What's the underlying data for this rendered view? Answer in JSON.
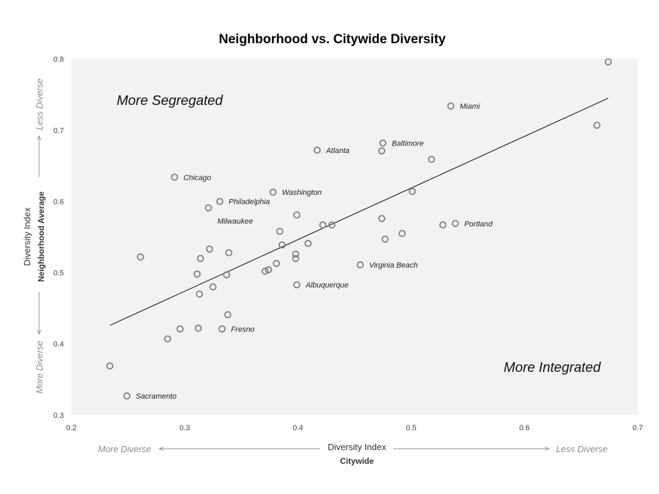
{
  "chart_data": {
    "type": "scatter",
    "title": "Neighborhood vs. Citywide Diversity",
    "xlabel": "Diversity Index",
    "xlabel_sub": "Citywide",
    "ylabel": "Diversity Index",
    "ylabel_sub": "Neighborhood Average",
    "xlim": [
      0.2,
      0.7
    ],
    "ylim": [
      0.3,
      0.8
    ],
    "xticks": [
      "0.2",
      "0.3",
      "0.4",
      "0.5",
      "0.6",
      "0.7"
    ],
    "yticks": [
      "0.3",
      "0.4",
      "0.5",
      "0.6",
      "0.7",
      "0.8"
    ],
    "x_direction": {
      "low": "More Diverse",
      "high": "Less Diverse"
    },
    "y_direction": {
      "low": "More Diverse",
      "high": "Less Diverse"
    },
    "annotations": {
      "top_left": "More Segregated",
      "bottom_right": "More Integrated"
    },
    "trendline": {
      "x": [
        0.234,
        0.674
      ],
      "y": [
        0.426,
        0.745
      ]
    },
    "grid": false,
    "legend": "none",
    "colors": {
      "plot_bg": "#f2f2f2",
      "marker": "#7f7f7f",
      "line": "#000000"
    },
    "points": [
      {
        "x": 0.674,
        "y": 0.796,
        "label": ""
      },
      {
        "x": 0.664,
        "y": 0.707,
        "label": ""
      },
      {
        "x": 0.535,
        "y": 0.734,
        "label": "Miami"
      },
      {
        "x": 0.475,
        "y": 0.682,
        "label": "Baltimore"
      },
      {
        "x": 0.474,
        "y": 0.671,
        "label": ""
      },
      {
        "x": 0.417,
        "y": 0.672,
        "label": "Atlanta"
      },
      {
        "x": 0.518,
        "y": 0.659,
        "label": ""
      },
      {
        "x": 0.291,
        "y": 0.634,
        "label": "Chicago"
      },
      {
        "x": 0.378,
        "y": 0.613,
        "label": "Washington"
      },
      {
        "x": 0.501,
        "y": 0.614,
        "label": ""
      },
      {
        "x": 0.331,
        "y": 0.6,
        "label": "Philadelphia"
      },
      {
        "x": 0.321,
        "y": 0.591,
        "label": "Milwaukee"
      },
      {
        "x": 0.399,
        "y": 0.581,
        "label": ""
      },
      {
        "x": 0.474,
        "y": 0.576,
        "label": ""
      },
      {
        "x": 0.422,
        "y": 0.567,
        "label": ""
      },
      {
        "x": 0.43,
        "y": 0.567,
        "label": ""
      },
      {
        "x": 0.528,
        "y": 0.567,
        "label": ""
      },
      {
        "x": 0.539,
        "y": 0.569,
        "label": "Portland"
      },
      {
        "x": 0.384,
        "y": 0.558,
        "label": ""
      },
      {
        "x": 0.492,
        "y": 0.555,
        "label": ""
      },
      {
        "x": 0.477,
        "y": 0.547,
        "label": ""
      },
      {
        "x": 0.386,
        "y": 0.539,
        "label": ""
      },
      {
        "x": 0.409,
        "y": 0.541,
        "label": ""
      },
      {
        "x": 0.322,
        "y": 0.533,
        "label": ""
      },
      {
        "x": 0.339,
        "y": 0.528,
        "label": ""
      },
      {
        "x": 0.398,
        "y": 0.526,
        "label": ""
      },
      {
        "x": 0.261,
        "y": 0.522,
        "label": ""
      },
      {
        "x": 0.314,
        "y": 0.52,
        "label": ""
      },
      {
        "x": 0.398,
        "y": 0.52,
        "label": ""
      },
      {
        "x": 0.381,
        "y": 0.513,
        "label": ""
      },
      {
        "x": 0.455,
        "y": 0.511,
        "label": "Virginia Beach"
      },
      {
        "x": 0.374,
        "y": 0.504,
        "label": ""
      },
      {
        "x": 0.371,
        "y": 0.502,
        "label": ""
      },
      {
        "x": 0.311,
        "y": 0.498,
        "label": ""
      },
      {
        "x": 0.337,
        "y": 0.497,
        "label": ""
      },
      {
        "x": 0.399,
        "y": 0.483,
        "label": "Albuquerque"
      },
      {
        "x": 0.325,
        "y": 0.48,
        "label": ""
      },
      {
        "x": 0.313,
        "y": 0.47,
        "label": ""
      },
      {
        "x": 0.338,
        "y": 0.441,
        "label": ""
      },
      {
        "x": 0.296,
        "y": 0.421,
        "label": ""
      },
      {
        "x": 0.312,
        "y": 0.422,
        "label": ""
      },
      {
        "x": 0.333,
        "y": 0.421,
        "label": "Fresno"
      },
      {
        "x": 0.285,
        "y": 0.407,
        "label": ""
      },
      {
        "x": 0.234,
        "y": 0.369,
        "label": ""
      },
      {
        "x": 0.249,
        "y": 0.327,
        "label": "Sacramento"
      }
    ]
  }
}
